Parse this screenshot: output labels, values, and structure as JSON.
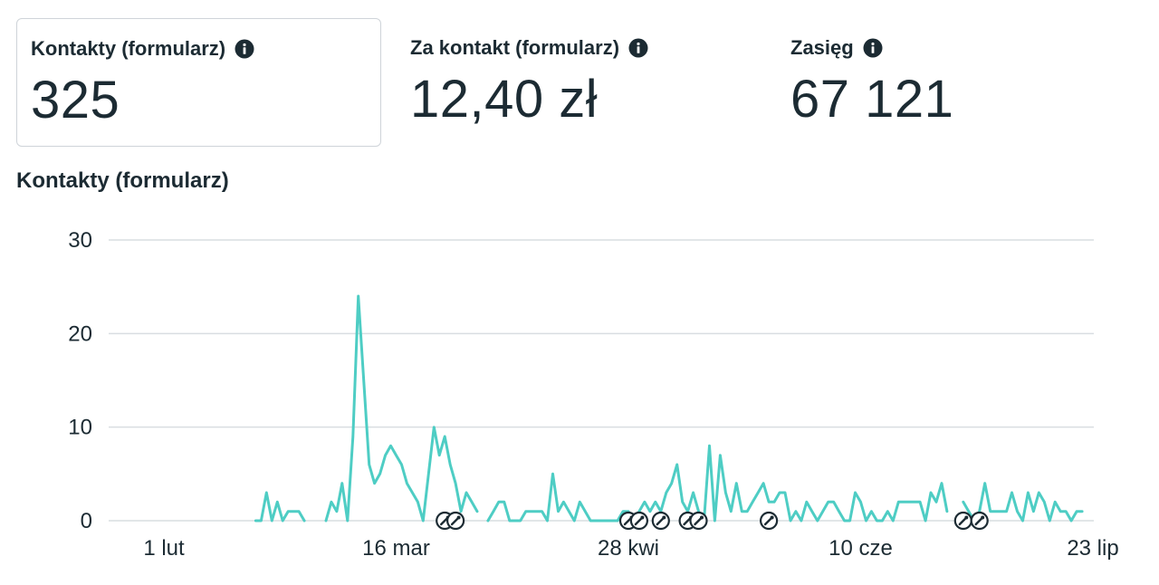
{
  "metrics": [
    {
      "label": "Kontakty (formularz)",
      "value": "325",
      "selected": true
    },
    {
      "label": "Za kontakt (formularz)",
      "value": "12,40 zł",
      "selected": false
    },
    {
      "label": "Zasięg",
      "value": "67 121",
      "selected": false
    }
  ],
  "chart_title": "Kontakty (formularz)",
  "colors": {
    "line": "#4ecdc4",
    "grid": "#d9dde1",
    "text": "#1c2b33",
    "card_border": "#cfd4d9"
  },
  "chart_data": {
    "type": "line",
    "title": "Kontakty (formularz)",
    "xlabel": "",
    "ylabel": "",
    "ylim": [
      0,
      30
    ],
    "yticks": [
      0,
      10,
      20,
      30
    ],
    "xticks": [
      {
        "label": "1 lut",
        "day": 0
      },
      {
        "label": "16 mar",
        "day": 43
      },
      {
        "label": "28 kwi",
        "day": 86
      },
      {
        "label": "10 cze",
        "day": 129
      },
      {
        "label": "23 lip",
        "day": 172
      }
    ],
    "grid": true,
    "missing_data_markers": [
      52,
      54,
      86,
      88,
      92,
      97,
      99,
      112,
      148,
      151
    ],
    "series": [
      {
        "values": [
          null,
          null,
          null,
          null,
          null,
          null,
          null,
          null,
          null,
          null,
          null,
          null,
          null,
          null,
          null,
          null,
          null,
          0,
          0,
          3,
          0,
          2,
          0,
          1,
          1,
          1,
          0,
          null,
          null,
          null,
          0,
          2,
          1,
          4,
          0,
          9,
          24,
          15,
          6,
          4,
          5,
          7,
          8,
          7,
          6,
          4,
          3,
          2,
          0,
          5,
          10,
          7,
          9,
          6,
          4,
          1,
          3,
          2,
          1,
          null,
          0,
          1,
          2,
          2,
          0,
          0,
          0,
          1,
          1,
          1,
          1,
          0,
          5,
          1,
          2,
          1,
          0,
          2,
          1,
          0,
          0,
          0,
          0,
          0,
          0,
          1,
          1,
          0,
          1,
          2,
          1,
          2,
          1,
          3,
          4,
          6,
          2,
          1,
          3,
          1,
          0,
          8,
          0,
          7,
          3,
          1,
          4,
          1,
          1,
          2,
          3,
          4,
          2,
          2,
          3,
          3,
          0,
          1,
          0,
          2,
          1,
          0,
          1,
          2,
          2,
          1,
          0,
          0,
          3,
          2,
          0,
          1,
          0,
          0,
          1,
          0,
          2,
          2,
          2,
          2,
          2,
          0,
          3,
          2,
          4,
          1,
          null,
          null,
          2,
          1,
          0,
          1,
          4,
          1,
          1,
          1,
          1,
          3,
          1,
          0,
          3,
          1,
          3,
          2,
          0,
          2,
          1,
          1,
          0,
          1,
          1
        ]
      }
    ]
  }
}
